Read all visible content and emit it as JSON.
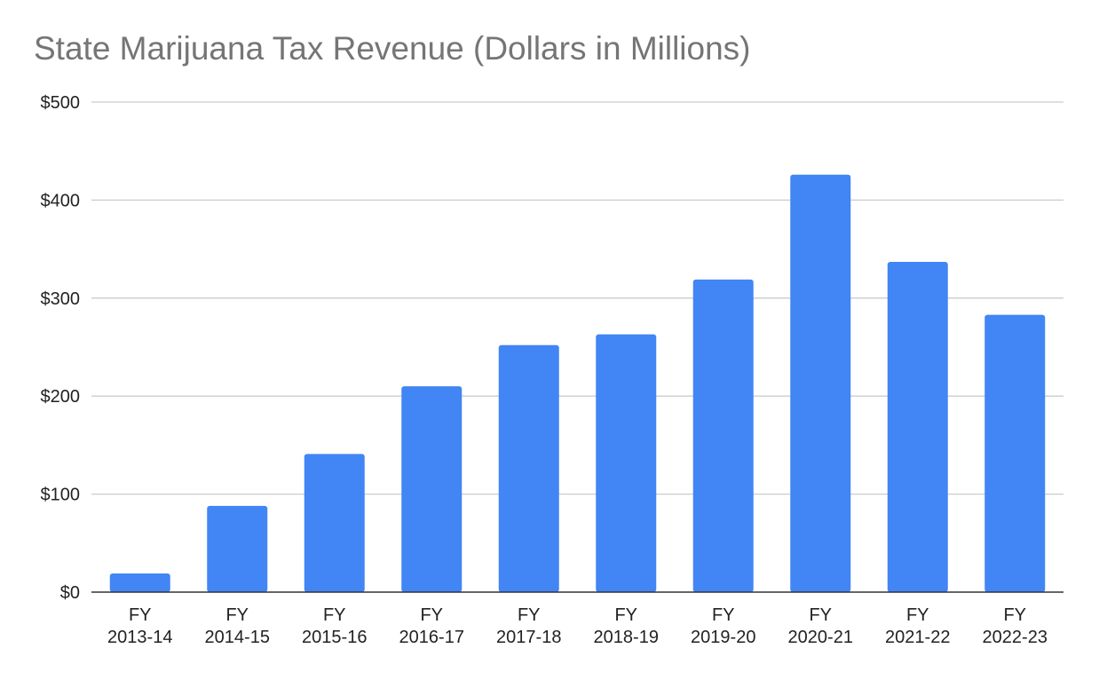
{
  "chart_data": {
    "type": "bar",
    "title": "State Marijuana Tax Revenue (Dollars in Millions)",
    "xlabel": "",
    "ylabel": "",
    "categories": [
      [
        "FY",
        "2013-14"
      ],
      [
        "FY",
        "2014-15"
      ],
      [
        "FY",
        "2015-16"
      ],
      [
        "FY",
        "2016-17"
      ],
      [
        "FY",
        "2017-18"
      ],
      [
        "FY",
        "2018-19"
      ],
      [
        "FY",
        "2019-20"
      ],
      [
        "FY",
        "2020-21"
      ],
      [
        "FY",
        "2021-22"
      ],
      [
        "FY",
        "2022-23"
      ]
    ],
    "values": [
      19,
      88,
      141,
      210,
      252,
      263,
      319,
      426,
      337,
      283
    ],
    "ylim": [
      0,
      500
    ],
    "yticks": [
      0,
      100,
      200,
      300,
      400,
      500
    ],
    "ytick_labels": [
      "$0",
      "$100",
      "$200",
      "$300",
      "$400",
      "$500"
    ],
    "grid": true,
    "legend": "none",
    "bar_color": "#4285f4",
    "grid_color": "#cccccc",
    "axis_color": "#333333",
    "title_color": "#757575",
    "label_color": "#222222"
  }
}
